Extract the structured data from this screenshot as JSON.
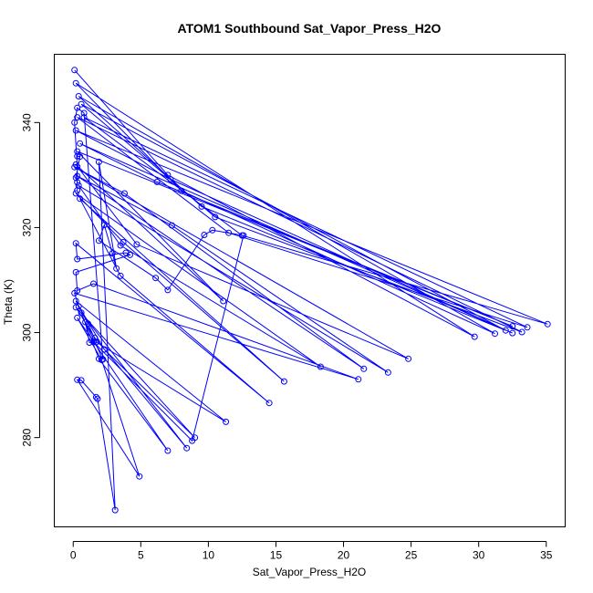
{
  "chart_data": {
    "type": "scatter",
    "title": "ATOM1 Southbound Sat_Vapor_Press_H2O",
    "xlabel": "Sat_Vapor_Press_H2O",
    "ylabel": "Theta (K)",
    "xlim": [
      -1.4,
      36.4
    ],
    "ylim": [
      263.0,
      353.0
    ],
    "xticks": [
      0,
      5,
      10,
      15,
      20,
      25,
      30,
      35
    ],
    "yticks": [
      280,
      300,
      320,
      340
    ],
    "color": "#0000ff",
    "lines_connected": true,
    "series": [
      {
        "points": [
          [
            0.1,
            350
          ],
          [
            7.0,
            330
          ],
          [
            29.7,
            299.2
          ],
          [
            0.2,
            347.5
          ],
          [
            8.0,
            327
          ],
          [
            31.2,
            299.8
          ],
          [
            0.4,
            345
          ],
          [
            9.5,
            324
          ],
          [
            32.0,
            300.4
          ],
          [
            0.6,
            343.5
          ],
          [
            10.5,
            322
          ],
          [
            33.2,
            300.1
          ],
          [
            0.3,
            341
          ],
          [
            11.5,
            319
          ],
          [
            33.6,
            301
          ],
          [
            0.8,
            341
          ],
          [
            12.5,
            318.5
          ],
          [
            35.1,
            301.6
          ],
          [
            0.2,
            338.5
          ],
          [
            7.2,
            329.2
          ],
          [
            32.5,
            299.9
          ],
          [
            0.5,
            336
          ],
          [
            6.2,
            328.7
          ],
          [
            32.5,
            301.2
          ],
          [
            0.3,
            334.5
          ],
          [
            11.1,
            306
          ],
          [
            0.2,
            332
          ],
          [
            4.7,
            316.8
          ],
          [
            24.8,
            295
          ],
          [
            0.1,
            331.5
          ],
          [
            3.8,
            326.5
          ],
          [
            21.5,
            293.1
          ],
          [
            0.3,
            329.8
          ],
          [
            7.3,
            320.4
          ],
          [
            23.3,
            292.4
          ],
          [
            0.4,
            328
          ],
          [
            3.5,
            316.6
          ],
          [
            18.3,
            293.5
          ],
          [
            0.2,
            326.5
          ],
          [
            3.7,
            317.2
          ],
          [
            15.6,
            290.7
          ],
          [
            0.5,
            325.5
          ],
          [
            3.5,
            310.8
          ],
          [
            14.5,
            286.6
          ],
          [
            0.2,
            317
          ],
          [
            0.3,
            314
          ],
          [
            3.9,
            315.2
          ],
          [
            4.2,
            314.8
          ],
          [
            0.2,
            311.5
          ],
          [
            0.3,
            308
          ],
          [
            1.5,
            309.3
          ],
          [
            21.1,
            291.1
          ],
          [
            0.1,
            307.5
          ],
          [
            0.4,
            305
          ],
          [
            1.1,
            301.7
          ],
          [
            1.7,
            298.2
          ],
          [
            11.3,
            283
          ],
          [
            0.2,
            306
          ],
          [
            2.3,
            296.8
          ],
          [
            9.0,
            280.0
          ],
          [
            0.2,
            304.8
          ],
          [
            1.6,
            299
          ],
          [
            8.4,
            278
          ],
          [
            0.6,
            303.8
          ],
          [
            1.9,
            295
          ],
          [
            7.0,
            277.5
          ],
          [
            0.3,
            302.8
          ],
          [
            2.1,
            294.8
          ],
          [
            4.9,
            272.6
          ],
          [
            0.3,
            291
          ],
          [
            0.6,
            290.9
          ],
          [
            1.7,
            287.7
          ],
          [
            1.8,
            287.4
          ],
          [
            3.1,
            266.2
          ],
          [
            1.9,
            332.5
          ],
          [
            3.2,
            312.2
          ],
          [
            2.9,
            315.1
          ],
          [
            2.3,
            320.5
          ],
          [
            1.9,
            317.5
          ],
          [
            6.1,
            310.4
          ],
          [
            7.0,
            308.1
          ],
          [
            9.7,
            318.6
          ],
          [
            10.3,
            319.5
          ],
          [
            12.6,
            318.5
          ],
          [
            8.8,
            279.4
          ],
          [
            1.5,
            298.2
          ],
          [
            1.2,
            298.1
          ],
          [
            0.9,
            302
          ],
          [
            2.2,
            294.9
          ],
          [
            0.8,
            341.8
          ],
          [
            0.3,
            342.8
          ],
          [
            0.1,
            340
          ],
          [
            0.3,
            331.6
          ],
          [
            0.3,
            327.1
          ],
          [
            0.3,
            328.6
          ],
          [
            0.2,
            329.5
          ],
          [
            0.5,
            333.5
          ],
          [
            0.3,
            333.6
          ]
        ]
      }
    ]
  }
}
